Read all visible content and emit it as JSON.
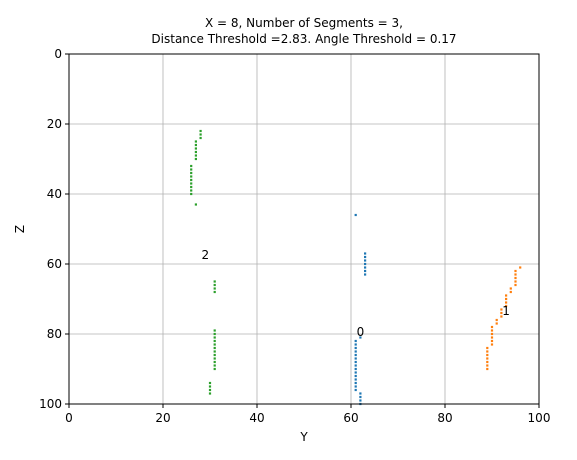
{
  "chart_data": {
    "type": "scatter",
    "title_lines": [
      "X = 8, Number of Segments = 3,",
      "Distance Threshold =2.83. Angle Threshold = 0.17"
    ],
    "xlabel": "Y",
    "ylabel": "Z",
    "xlim": [
      0,
      100
    ],
    "ylim": [
      100,
      0
    ],
    "y_inverted": true,
    "grid": true,
    "xticks": [
      0,
      20,
      40,
      60,
      80,
      100
    ],
    "yticks": [
      0,
      20,
      40,
      60,
      80,
      100
    ],
    "series": [
      {
        "color": "#1f77b4",
        "points": [
          [
            61,
            46
          ],
          [
            63,
            57
          ],
          [
            63,
            58
          ],
          [
            63,
            59
          ],
          [
            63,
            60
          ],
          [
            63,
            61
          ],
          [
            63,
            62
          ],
          [
            63,
            63
          ],
          [
            62,
            81
          ],
          [
            61,
            82
          ],
          [
            61,
            83
          ],
          [
            61,
            84
          ],
          [
            61,
            85
          ],
          [
            61,
            86
          ],
          [
            61,
            87
          ],
          [
            61,
            88
          ],
          [
            61,
            89
          ],
          [
            61,
            90
          ],
          [
            61,
            91
          ],
          [
            61,
            92
          ],
          [
            61,
            93
          ],
          [
            61,
            94
          ],
          [
            61,
            95
          ],
          [
            61,
            96
          ],
          [
            62,
            97
          ],
          [
            62,
            98
          ],
          [
            62,
            99
          ],
          [
            62,
            100
          ]
        ]
      },
      {
        "color": "#ff7f0e",
        "points": [
          [
            96,
            61
          ],
          [
            95,
            62
          ],
          [
            95,
            63
          ],
          [
            95,
            64
          ],
          [
            95,
            65
          ],
          [
            95,
            66
          ],
          [
            94,
            67
          ],
          [
            94,
            68
          ],
          [
            93,
            69
          ],
          [
            93,
            70
          ],
          [
            93,
            71
          ],
          [
            93,
            72
          ],
          [
            92,
            73
          ],
          [
            92,
            74
          ],
          [
            92,
            75
          ],
          [
            91,
            76
          ],
          [
            91,
            77
          ],
          [
            90,
            78
          ],
          [
            90,
            79
          ],
          [
            90,
            80
          ],
          [
            90,
            81
          ],
          [
            90,
            82
          ],
          [
            90,
            83
          ],
          [
            89,
            84
          ],
          [
            89,
            85
          ],
          [
            89,
            86
          ],
          [
            89,
            87
          ],
          [
            89,
            88
          ],
          [
            89,
            89
          ],
          [
            89,
            90
          ]
        ]
      },
      {
        "color": "#2ca02c",
        "points": [
          [
            28,
            22
          ],
          [
            28,
            23
          ],
          [
            28,
            24
          ],
          [
            27,
            25
          ],
          [
            27,
            26
          ],
          [
            27,
            27
          ],
          [
            27,
            28
          ],
          [
            27,
            29
          ],
          [
            27,
            30
          ],
          [
            26,
            32
          ],
          [
            26,
            33
          ],
          [
            26,
            34
          ],
          [
            26,
            35
          ],
          [
            26,
            36
          ],
          [
            26,
            37
          ],
          [
            26,
            38
          ],
          [
            26,
            39
          ],
          [
            26,
            40
          ],
          [
            27,
            43
          ],
          [
            31,
            65
          ],
          [
            31,
            66
          ],
          [
            31,
            67
          ],
          [
            31,
            68
          ],
          [
            31,
            79
          ],
          [
            31,
            80
          ],
          [
            31,
            81
          ],
          [
            31,
            82
          ],
          [
            31,
            83
          ],
          [
            31,
            84
          ],
          [
            31,
            85
          ],
          [
            31,
            86
          ],
          [
            31,
            87
          ],
          [
            31,
            88
          ],
          [
            31,
            89
          ],
          [
            31,
            90
          ],
          [
            30,
            94
          ],
          [
            30,
            95
          ],
          [
            30,
            96
          ],
          [
            30,
            97
          ]
        ]
      }
    ],
    "annotations": [
      {
        "text": "0",
        "x": 62,
        "y": 80
      },
      {
        "text": "1",
        "x": 93,
        "y": 74
      },
      {
        "text": "2",
        "x": 29,
        "y": 58
      }
    ]
  }
}
